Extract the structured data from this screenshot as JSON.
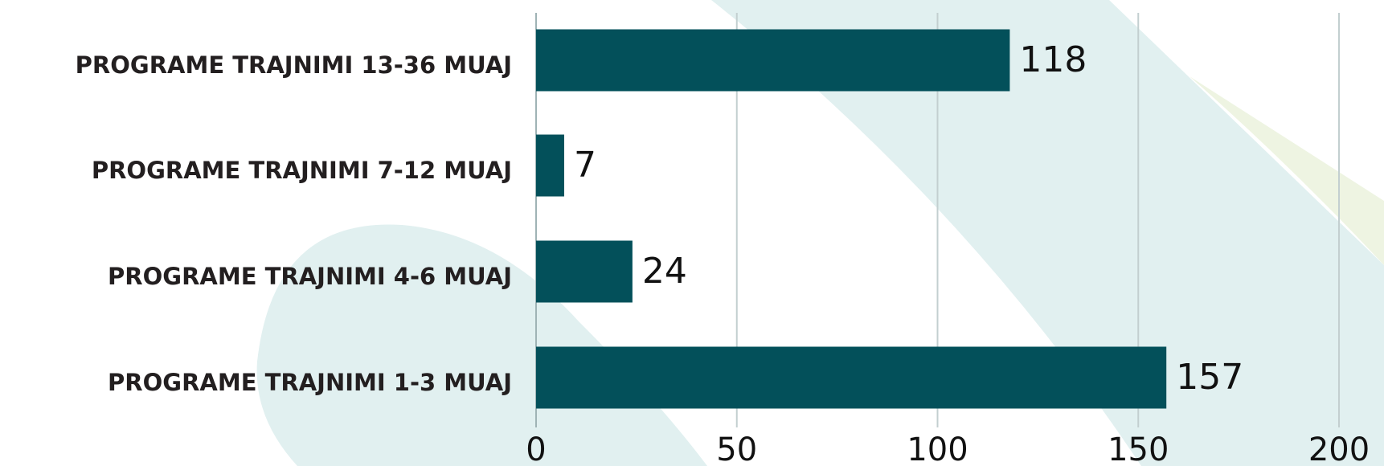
{
  "chart_data": {
    "type": "bar",
    "orientation": "horizontal",
    "categories": [
      "PROGRAME TRAJNIMI 13-36 MUAJ",
      "PROGRAME TRAJNIMI 7-12 MUAJ",
      "PROGRAME TRAJNIMI 4-6 MUAJ",
      "PROGRAME TRAJNIMI 1-3 MUAJ"
    ],
    "values": [
      118,
      7,
      24,
      157
    ],
    "color": "#03505a",
    "xlim": [
      0,
      200
    ],
    "xticks": [
      0,
      50,
      100,
      150,
      200
    ],
    "grid": true
  }
}
